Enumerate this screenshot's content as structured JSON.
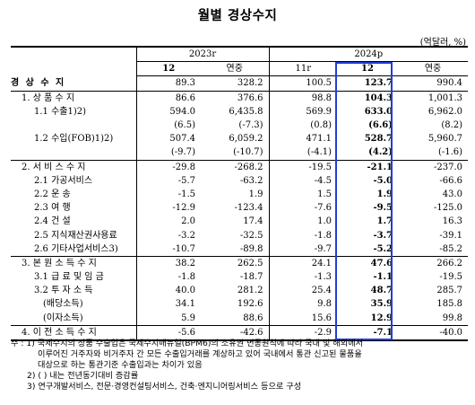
{
  "title": "월별 경상수지",
  "unit": "(억달러, %)",
  "headers": {
    "year_2023": "2023r",
    "year_2024": "2024p",
    "cols": [
      "12",
      "연중",
      "11r",
      "12",
      "연중"
    ]
  },
  "rows": [
    {
      "label": "경 상 수 지",
      "v": [
        "89.3",
        "328.2",
        "100.5",
        "123.7",
        "990.4"
      ]
    },
    {
      "label": "1. 상 품 수 지",
      "v": [
        "86.6",
        "376.6",
        "98.8",
        "104.3",
        "1,001.3"
      ]
    },
    {
      "label": "1.1 수출1)2)",
      "v": [
        "594.0",
        "6,435.8",
        "569.9",
        "633.0",
        "6,962.0"
      ]
    },
    {
      "label": "",
      "v": [
        "(6.5)",
        "(-7.3)",
        "(0.8)",
        "(6.6)",
        "(8.2)"
      ]
    },
    {
      "label": "1.2 수입(FOB)1)2)",
      "v": [
        "507.4",
        "6,059.2",
        "471.1",
        "528.7",
        "5,960.7"
      ]
    },
    {
      "label": "",
      "v": [
        "(-9.7)",
        "(-10.7)",
        "(-4.1)",
        "(4.2)",
        "(-1.6)"
      ]
    },
    {
      "label": "2. 서 비 스 수 지",
      "v": [
        "-29.8",
        "-268.2",
        "-19.5",
        "-21.1",
        "-237.0"
      ]
    },
    {
      "label": "2.1 가공서비스",
      "v": [
        "-5.7",
        "-63.2",
        "-4.5",
        "-5.0",
        "-66.6"
      ]
    },
    {
      "label": "2.2 운 송",
      "v": [
        "-1.5",
        "1.9",
        "1.5",
        "1.9",
        "43.0"
      ]
    },
    {
      "label": "2.3 여 행",
      "v": [
        "-12.9",
        "-123.4",
        "-7.6",
        "-9.5",
        "-125.0"
      ]
    },
    {
      "label": "2.4 건 설",
      "v": [
        "2.0",
        "17.4",
        "1.0",
        "1.7",
        "16.3"
      ]
    },
    {
      "label": "2.5 지식재산권사용료",
      "v": [
        "-3.2",
        "-32.5",
        "-1.8",
        "-3.7",
        "-39.1"
      ]
    },
    {
      "label": "2.6 기타사업서비스3)",
      "v": [
        "-10.7",
        "-89.8",
        "-9.7",
        "-5.2",
        "-85.2"
      ]
    },
    {
      "label": "3. 본 원 소 득 수 지",
      "v": [
        "38.2",
        "262.5",
        "24.1",
        "47.6",
        "266.2"
      ]
    },
    {
      "label": "3.1 급 료 및 임 금",
      "v": [
        "-1.8",
        "-18.7",
        "-1.3",
        "-1.1",
        "-19.5"
      ]
    },
    {
      "label": "3.2 투 자 소 득",
      "v": [
        "40.0",
        "281.2",
        "25.4",
        "48.7",
        "285.7"
      ]
    },
    {
      "label": "(배당소득)",
      "v": [
        "34.1",
        "192.6",
        "9.8",
        "35.9",
        "185.8"
      ]
    },
    {
      "label": "(이자소득)",
      "v": [
        "5.9",
        "88.6",
        "15.6",
        "12.9",
        "99.8"
      ]
    },
    {
      "label": "4. 이 전 소 득 수 지",
      "v": [
        "-5.6",
        "-42.6",
        "-2.9",
        "-7.1",
        "-40.0"
      ]
    }
  ],
  "notes": [
    "주 : 1) 국제수지의 상품 수출입은 국제수지매뉴얼(BPM6)의 소유권 변동원칙에 따라 국내 및 해외에서",
    "이루어진 거주자와 비거주자 간 모든 수출입거래를 계상하고 있어 국내에서 통관 신고된 물품을",
    "대상으로 하는 통관기준 수출입과는 차이가 있음",
    "2) ( ) 내는 전년동기대비 증감률",
    "3) 연구개발서비스, 전문·경영컨설팅서비스, 건축·엔지니어링서비스 등으로 구성"
  ],
  "highlight_color": "#1f3fd6"
}
